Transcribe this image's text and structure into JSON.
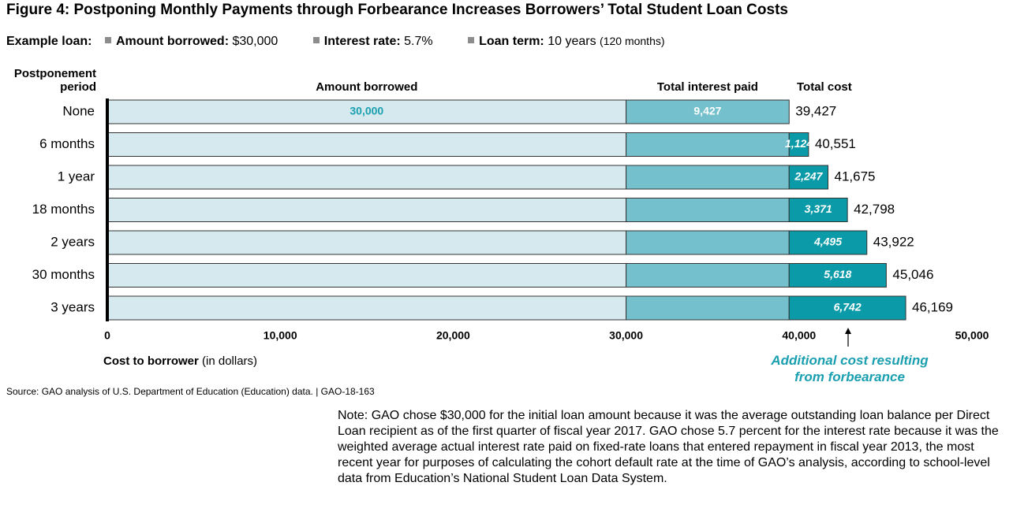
{
  "chart_data": {
    "type": "stacked_barh",
    "title": "Figure 4: Postponing Monthly Payments through Forbearance Increases Borrowers’ Total Student Loan Costs",
    "example": {
      "label": "Example loan:",
      "items": [
        {
          "name": "Amount borrowed:",
          "value": "$30,000"
        },
        {
          "name": "Interest rate:",
          "value": "5.7%"
        },
        {
          "name": "Loan term:",
          "value": "10 years",
          "detail": "(120 months)"
        }
      ]
    },
    "ylabel": "Postponement period",
    "xlabel": "Cost to borrower",
    "xlabel_unit": "(in dollars)",
    "categories": [
      "None",
      "6 months",
      "1 year",
      "18 months",
      "2 years",
      "30 months",
      "3 years"
    ],
    "series": [
      {
        "name": "Amount borrowed",
        "color": "#d5e9ee",
        "label_color": "#1a9fb0",
        "values": [
          30000,
          30000,
          30000,
          30000,
          30000,
          30000,
          30000
        ],
        "value_labels": [
          "30,000",
          null,
          null,
          null,
          null,
          null,
          null
        ]
      },
      {
        "name": "Total interest paid",
        "color": "#74c0cc",
        "label_color": "#ffffff",
        "values": [
          9427,
          9427,
          9427,
          9427,
          9427,
          9427,
          9427
        ],
        "value_labels": [
          "9,427",
          null,
          null,
          null,
          null,
          null,
          null
        ]
      },
      {
        "name": "Additional cost resulting from forbearance",
        "color": "#0b9aa7",
        "label_color": "#ffffff",
        "values": [
          null,
          1124,
          2247,
          3371,
          4495,
          5618,
          6742
        ],
        "value_labels": [
          null,
          "1,124",
          "2,247",
          "3,371",
          "4,495",
          "5,618",
          "6,742"
        ]
      }
    ],
    "totals": {
      "name": "Total cost",
      "values": [
        39427,
        40551,
        41675,
        42798,
        43922,
        45046,
        46169
      ],
      "value_labels": [
        "39,427",
        "40,551",
        "41,675",
        "42,798",
        "43,922",
        "45,046",
        "46,169"
      ]
    },
    "xlim": [
      0,
      50000
    ],
    "xticks": [
      0,
      {
        "value": 10000,
        "label": "10,000"
      },
      {
        "value": 20000,
        "label": "20,000"
      },
      {
        "value": 30000,
        "label": "30,000"
      },
      {
        "value": 40000,
        "label": "40,000"
      },
      {
        "value": 50000,
        "label": "50,000"
      }
    ],
    "source": "Source: GAO analysis of U.S. Department of Education (Education) data.  |  GAO-18-163",
    "note": "Note: GAO chose $30,000 for the initial loan amount because it was the average outstanding loan balance per Direct Loan recipient as of the first quarter of fiscal year 2017. GAO chose 5.7 percent for the interest rate because it was the weighted average actual interest rate paid on fixed-rate loans that entered repayment in fiscal year 2013, the most recent year for purposes of calculating the cohort default rate at the time of GAO’s analysis, according to school-level data from Education’s National Student Loan Data System."
  }
}
